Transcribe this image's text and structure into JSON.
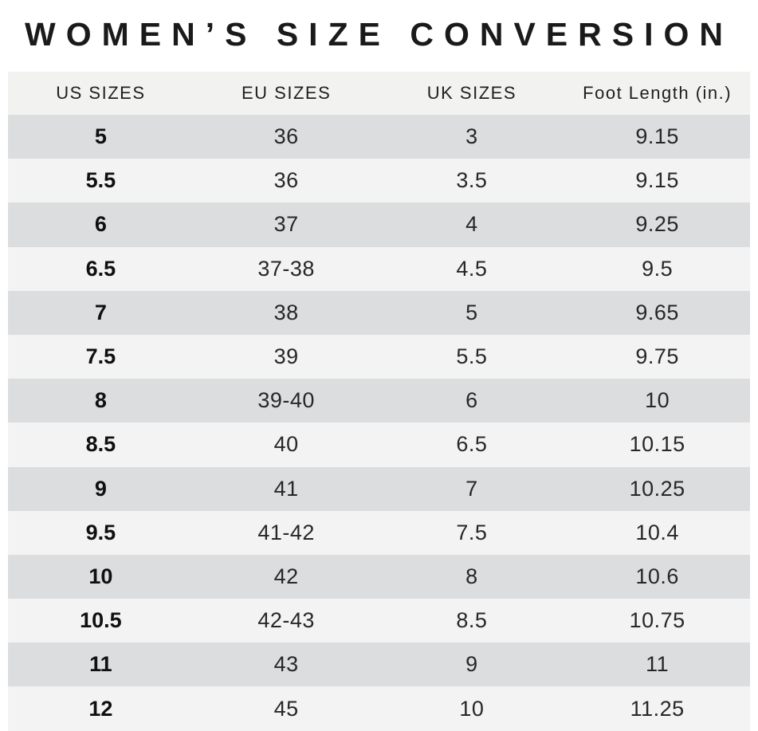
{
  "title": "WOMEN’S SIZE CONVERSION",
  "chart_data": {
    "type": "table",
    "title": "WOMEN’S SIZE CONVERSION",
    "columns": [
      "US SIZES",
      "EU SIZES",
      "UK SIZES",
      "Foot Length (in.)"
    ],
    "column_keys": [
      "us-size",
      "eu-size",
      "uk-size",
      "foot-length"
    ],
    "rows": [
      [
        "5",
        "36",
        "3",
        "9.15"
      ],
      [
        "5.5",
        "36",
        "3.5",
        "9.15"
      ],
      [
        "6",
        "37",
        "4",
        "9.25"
      ],
      [
        "6.5",
        "37-38",
        "4.5",
        "9.5"
      ],
      [
        "7",
        "38",
        "5",
        "9.65"
      ],
      [
        "7.5",
        "39",
        "5.5",
        "9.75"
      ],
      [
        "8",
        "39-40",
        "6",
        "10"
      ],
      [
        "8.5",
        "40",
        "6.5",
        "10.15"
      ],
      [
        "9",
        "41",
        "7",
        "10.25"
      ],
      [
        "9.5",
        "41-42",
        "7.5",
        "10.4"
      ],
      [
        "10",
        "42",
        "8",
        "10.6"
      ],
      [
        "10.5",
        "42-43",
        "8.5",
        "10.75"
      ],
      [
        "11",
        "43",
        "9",
        "11"
      ],
      [
        "12",
        "45",
        "10",
        "11.25"
      ]
    ],
    "layout_hints": {
      "zebra_striping": true,
      "first_data_row_shade": "dark",
      "us_column_bold": true
    }
  },
  "colors": {
    "title_text": "#1a1a1a",
    "header_bg": "#f2f2f1",
    "row_dark": "#dcddde",
    "row_light": "#f3f3f3",
    "cell_text": "#272727"
  }
}
